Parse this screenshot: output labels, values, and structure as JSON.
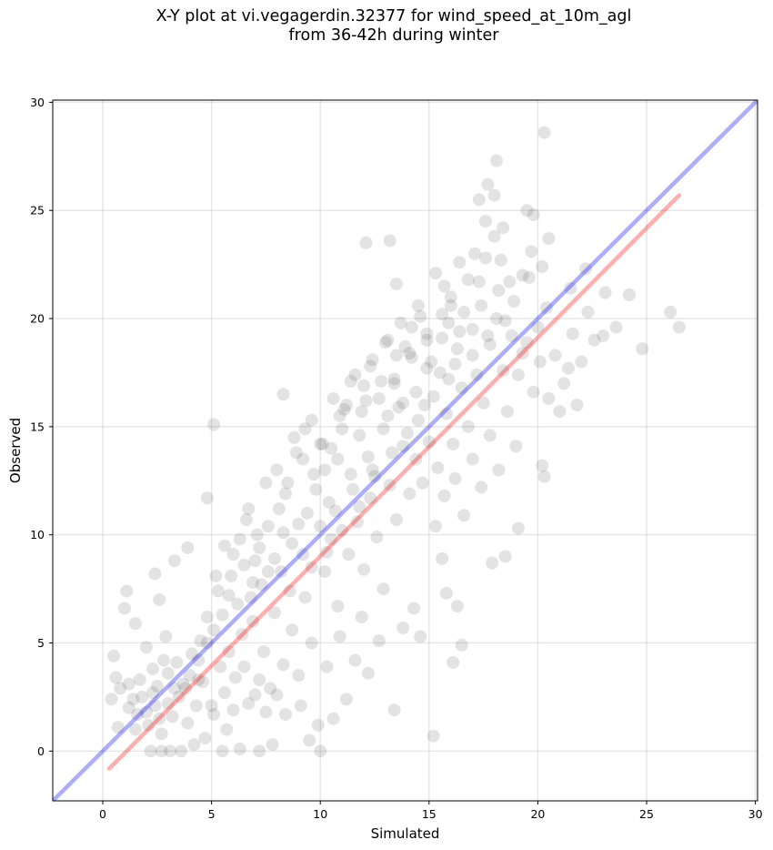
{
  "title": {
    "line1": "X-Y plot at vi.vegagerdin.32377 for wind_speed_at_10m_agl",
    "line2": "from 36-42h during winter"
  },
  "chart_data": {
    "type": "scatter",
    "xlabel": "Simulated",
    "ylabel": "Observed",
    "xlim": [
      -2.3,
      30.1
    ],
    "ylim": [
      -2.3,
      30.1
    ],
    "xticks": [
      0,
      5,
      10,
      15,
      20,
      25,
      30
    ],
    "yticks": [
      0,
      5,
      10,
      15,
      20,
      25,
      30
    ],
    "grid": true,
    "marker_color": "#404040",
    "marker_alpha": 0.15,
    "points": [
      [
        1.8,
        2.5
      ],
      [
        2.1,
        1.2
      ],
      [
        2.5,
        3.0
      ],
      [
        3.0,
        2.2
      ],
      [
        3.4,
        4.1
      ],
      [
        2.7,
        0.8
      ],
      [
        1.2,
        2.0
      ],
      [
        4.0,
        3.5
      ],
      [
        3.2,
        1.6
      ],
      [
        2.3,
        3.8
      ],
      [
        1.5,
        1.0
      ],
      [
        0.8,
        2.9
      ],
      [
        3.8,
        2.9
      ],
      [
        4.5,
        5.1
      ],
      [
        2.9,
        5.3
      ],
      [
        1.0,
        6.6
      ],
      [
        0.5,
        4.4
      ],
      [
        0.7,
        1.1
      ],
      [
        2.6,
        7.0
      ],
      [
        3.3,
        8.8
      ],
      [
        2.2,
        0.0
      ],
      [
        2.7,
        0.0
      ],
      [
        3.1,
        0.0
      ],
      [
        3.6,
        0.0
      ],
      [
        4.2,
        0.3
      ],
      [
        4.7,
        0.6
      ],
      [
        5.5,
        0.0
      ],
      [
        6.3,
        0.1
      ],
      [
        7.2,
        0.0
      ],
      [
        7.8,
        0.3
      ],
      [
        5.1,
        1.7
      ],
      [
        5.6,
        2.7
      ],
      [
        6.1,
        3.4
      ],
      [
        5.8,
        4.6
      ],
      [
        6.7,
        2.2
      ],
      [
        7.2,
        3.3
      ],
      [
        7.5,
        1.8
      ],
      [
        6.4,
        5.4
      ],
      [
        6.9,
        6.0
      ],
      [
        7.4,
        4.6
      ],
      [
        8.0,
        2.6
      ],
      [
        8.3,
        4.0
      ],
      [
        8.7,
        5.6
      ],
      [
        9.0,
        3.5
      ],
      [
        9.3,
        7.1
      ],
      [
        9.6,
        5.0
      ],
      [
        9.9,
        1.2
      ],
      [
        10.2,
        8.3
      ],
      [
        10.5,
        9.8
      ],
      [
        10.8,
        6.7
      ],
      [
        4.8,
        6.2
      ],
      [
        5.3,
        7.4
      ],
      [
        5.9,
        8.1
      ],
      [
        6.3,
        9.8
      ],
      [
        6.6,
        10.7
      ],
      [
        7.0,
        8.8
      ],
      [
        7.6,
        10.4
      ],
      [
        8.1,
        11.2
      ],
      [
        8.5,
        12.4
      ],
      [
        8.9,
        13.8
      ],
      [
        9.3,
        14.9
      ],
      [
        9.7,
        12.8
      ],
      [
        10.1,
        14.2
      ],
      [
        10.4,
        11.5
      ],
      [
        10.8,
        13.5
      ],
      [
        11.1,
        15.8
      ],
      [
        11.5,
        12.1
      ],
      [
        11.8,
        14.6
      ],
      [
        12.1,
        16.2
      ],
      [
        12.4,
        13.0
      ],
      [
        11.3,
        9.1
      ],
      [
        11.7,
        10.6
      ],
      [
        12.0,
        8.4
      ],
      [
        12.3,
        11.7
      ],
      [
        12.6,
        9.9
      ],
      [
        12.9,
        7.5
      ],
      [
        13.2,
        12.3
      ],
      [
        13.5,
        10.7
      ],
      [
        13.8,
        14.1
      ],
      [
        14.1,
        11.9
      ],
      [
        13.1,
        15.5
      ],
      [
        13.4,
        17.0
      ],
      [
        13.8,
        16.1
      ],
      [
        14.2,
        18.2
      ],
      [
        14.5,
        15.3
      ],
      [
        14.9,
        17.7
      ],
      [
        15.2,
        16.4
      ],
      [
        15.6,
        19.1
      ],
      [
        15.9,
        17.2
      ],
      [
        16.3,
        18.6
      ],
      [
        14.4,
        13.5
      ],
      [
        14.7,
        12.4
      ],
      [
        15.0,
        14.3
      ],
      [
        15.4,
        13.1
      ],
      [
        15.8,
        15.6
      ],
      [
        16.1,
        14.2
      ],
      [
        16.5,
        16.8
      ],
      [
        16.8,
        15.0
      ],
      [
        17.2,
        17.4
      ],
      [
        17.5,
        16.1
      ],
      [
        15.3,
        10.4
      ],
      [
        15.7,
        11.8
      ],
      [
        16.2,
        12.6
      ],
      [
        16.6,
        10.9
      ],
      [
        17.0,
        13.5
      ],
      [
        17.4,
        12.2
      ],
      [
        17.8,
        14.6
      ],
      [
        18.2,
        13.0
      ],
      [
        18.6,
        15.7
      ],
      [
        19.0,
        14.1
      ],
      [
        17.0,
        19.5
      ],
      [
        17.4,
        20.6
      ],
      [
        17.8,
        18.8
      ],
      [
        18.2,
        21.3
      ],
      [
        18.5,
        19.9
      ],
      [
        18.9,
        20.8
      ],
      [
        19.3,
        18.4
      ],
      [
        19.6,
        21.9
      ],
      [
        20.0,
        19.6
      ],
      [
        20.4,
        20.5
      ],
      [
        17.6,
        22.8
      ],
      [
        18.0,
        23.8
      ],
      [
        18.4,
        24.2
      ],
      [
        17.3,
        25.5
      ],
      [
        17.7,
        26.2
      ],
      [
        18.1,
        27.3
      ],
      [
        19.5,
        25.0
      ],
      [
        19.8,
        24.8
      ],
      [
        20.3,
        28.6
      ],
      [
        20.5,
        23.7
      ],
      [
        20.8,
        18.3
      ],
      [
        21.2,
        17.0
      ],
      [
        21.6,
        19.3
      ],
      [
        22.0,
        18.0
      ],
      [
        22.3,
        20.3
      ],
      [
        22.6,
        19.0
      ],
      [
        21.5,
        21.4
      ],
      [
        22.2,
        22.3
      ],
      [
        23.1,
        21.2
      ],
      [
        23.6,
        19.6
      ],
      [
        24.2,
        21.1
      ],
      [
        23.0,
        19.2
      ],
      [
        24.8,
        18.6
      ],
      [
        26.1,
        20.3
      ],
      [
        26.5,
        19.6
      ],
      [
        20.2,
        13.2
      ],
      [
        20.3,
        12.7
      ],
      [
        19.1,
        10.3
      ],
      [
        17.9,
        8.7
      ],
      [
        18.5,
        9.0
      ],
      [
        16.1,
        4.1
      ],
      [
        16.5,
        4.9
      ],
      [
        15.2,
        0.7
      ],
      [
        14.6,
        5.3
      ],
      [
        16.3,
        6.7
      ],
      [
        15.8,
        7.3
      ],
      [
        15.6,
        8.9
      ],
      [
        14.3,
        6.6
      ],
      [
        13.8,
        5.7
      ],
      [
        13.4,
        1.9
      ],
      [
        12.1,
        23.5
      ],
      [
        13.2,
        23.6
      ],
      [
        13.5,
        21.6
      ],
      [
        8.3,
        16.5
      ],
      [
        5.1,
        15.1
      ],
      [
        4.8,
        11.7
      ],
      [
        3.9,
        9.4
      ],
      [
        2.4,
        8.2
      ],
      [
        1.1,
        7.4
      ],
      [
        1.5,
        5.9
      ],
      [
        0.4,
        2.4
      ],
      [
        0.6,
        3.4
      ],
      [
        1.2,
        3.1
      ],
      [
        1.6,
        1.7
      ],
      [
        2.0,
        4.8
      ],
      [
        2.4,
        2.1
      ],
      [
        2.8,
        4.2
      ],
      [
        3.5,
        2.5
      ],
      [
        3.9,
        1.3
      ],
      [
        4.3,
        2.1
      ],
      [
        4.6,
        3.2
      ],
      [
        5.0,
        2.1
      ],
      [
        5.4,
        3.9
      ],
      [
        5.7,
        1.0
      ],
      [
        6.0,
        1.9
      ],
      [
        6.5,
        3.9
      ],
      [
        7.0,
        2.6
      ],
      [
        7.7,
        2.9
      ],
      [
        8.4,
        1.7
      ],
      [
        9.1,
        2.1
      ],
      [
        9.5,
        0.5
      ],
      [
        10.0,
        0.0
      ],
      [
        10.6,
        1.5
      ],
      [
        11.2,
        2.4
      ],
      [
        11.6,
        4.2
      ],
      [
        12.2,
        3.6
      ],
      [
        12.7,
        5.1
      ],
      [
        11.9,
        6.2
      ],
      [
        10.9,
        5.3
      ],
      [
        10.3,
        3.9
      ],
      [
        2.0,
        1.8
      ],
      [
        2.3,
        2.7
      ],
      [
        2.6,
        1.5
      ],
      [
        3.0,
        3.6
      ],
      [
        3.3,
        2.9
      ],
      [
        3.7,
        3.1
      ],
      [
        4.1,
        4.5
      ],
      [
        4.4,
        3.3
      ],
      [
        1.7,
        3.3
      ],
      [
        1.4,
        2.4
      ],
      [
        6.8,
        7.1
      ],
      [
        7.3,
        7.7
      ],
      [
        7.9,
        6.4
      ],
      [
        8.2,
        8.3
      ],
      [
        8.6,
        7.4
      ],
      [
        9.2,
        9.1
      ],
      [
        9.6,
        8.5
      ],
      [
        10.0,
        10.4
      ],
      [
        10.3,
        9.2
      ],
      [
        10.7,
        11.1
      ],
      [
        11.0,
        10.2
      ],
      [
        11.4,
        12.8
      ],
      [
        11.8,
        11.3
      ],
      [
        12.2,
        13.6
      ],
      [
        12.5,
        12.7
      ],
      [
        12.9,
        14.9
      ],
      [
        13.3,
        13.8
      ],
      [
        13.6,
        15.9
      ],
      [
        14.0,
        14.7
      ],
      [
        14.4,
        16.6
      ],
      [
        14.8,
        16.0
      ],
      [
        15.1,
        18.0
      ],
      [
        15.5,
        17.5
      ],
      [
        15.9,
        19.8
      ],
      [
        16.2,
        17.9
      ],
      [
        16.6,
        20.3
      ],
      [
        17.0,
        18.3
      ],
      [
        17.3,
        21.7
      ],
      [
        17.7,
        19.2
      ],
      [
        18.1,
        20.0
      ],
      [
        18.4,
        17.6
      ],
      [
        18.8,
        19.2
      ],
      [
        19.1,
        17.4
      ],
      [
        19.5,
        18.9
      ],
      [
        19.8,
        16.6
      ],
      [
        20.1,
        18.0
      ],
      [
        20.5,
        16.3
      ],
      [
        21.0,
        15.7
      ],
      [
        21.4,
        17.7
      ],
      [
        21.8,
        16.0
      ],
      [
        19.3,
        22.0
      ],
      [
        19.7,
        23.1
      ],
      [
        20.2,
        22.4
      ],
      [
        18.7,
        21.7
      ],
      [
        18.3,
        22.7
      ],
      [
        17.1,
        23.0
      ],
      [
        16.8,
        21.8
      ],
      [
        16.4,
        19.4
      ],
      [
        16.0,
        20.6
      ],
      [
        15.7,
        21.5
      ],
      [
        14.9,
        19.3
      ],
      [
        14.6,
        20.1
      ],
      [
        14.2,
        19.6
      ],
      [
        13.9,
        18.7
      ],
      [
        13.5,
        18.3
      ],
      [
        13.1,
        19.0
      ],
      [
        12.8,
        17.1
      ],
      [
        12.4,
        18.1
      ],
      [
        12.0,
        16.9
      ],
      [
        11.6,
        17.4
      ],
      [
        11.2,
        16.0
      ],
      [
        10.9,
        15.5
      ],
      [
        10.5,
        14.0
      ],
      [
        10.2,
        13.0
      ],
      [
        9.8,
        12.1
      ],
      [
        9.4,
        11.0
      ],
      [
        9.0,
        10.5
      ],
      [
        8.7,
        9.6
      ],
      [
        8.3,
        10.1
      ],
      [
        7.9,
        8.9
      ],
      [
        7.6,
        8.3
      ],
      [
        7.2,
        9.4
      ],
      [
        6.9,
        7.8
      ],
      [
        6.5,
        8.6
      ],
      [
        6.2,
        6.8
      ],
      [
        5.8,
        7.2
      ],
      [
        5.5,
        6.3
      ],
      [
        5.1,
        5.6
      ],
      [
        4.8,
        5.0
      ],
      [
        4.4,
        4.2
      ],
      [
        5.2,
        8.1
      ],
      [
        5.6,
        9.5
      ],
      [
        6.0,
        9.1
      ],
      [
        6.7,
        11.2
      ],
      [
        7.1,
        10.0
      ],
      [
        7.5,
        12.4
      ],
      [
        8.0,
        13.0
      ],
      [
        8.4,
        11.9
      ],
      [
        8.8,
        14.5
      ],
      [
        9.2,
        13.5
      ],
      [
        9.6,
        15.3
      ],
      [
        10.0,
        14.2
      ],
      [
        10.6,
        16.3
      ],
      [
        11.0,
        14.9
      ],
      [
        11.4,
        17.1
      ],
      [
        11.9,
        15.7
      ],
      [
        12.3,
        17.8
      ],
      [
        12.7,
        16.3
      ],
      [
        13.0,
        18.9
      ],
      [
        13.4,
        17.2
      ],
      [
        13.7,
        19.8
      ],
      [
        14.1,
        18.4
      ],
      [
        14.5,
        20.6
      ],
      [
        14.9,
        19.0
      ],
      [
        15.3,
        22.1
      ],
      [
        15.6,
        20.2
      ],
      [
        16.0,
        21.0
      ],
      [
        16.4,
        22.6
      ],
      [
        17.6,
        24.5
      ],
      [
        18.0,
        25.7
      ]
    ],
    "lines": [
      {
        "color": "#0000ff",
        "alpha": 0.32,
        "x": [
          -2.3,
          30.1
        ],
        "y": [
          -2.3,
          30.1
        ]
      },
      {
        "color": "#ff0000",
        "alpha": 0.32,
        "x": [
          0.3,
          26.5
        ],
        "y": [
          -0.8,
          25.7
        ]
      }
    ]
  }
}
